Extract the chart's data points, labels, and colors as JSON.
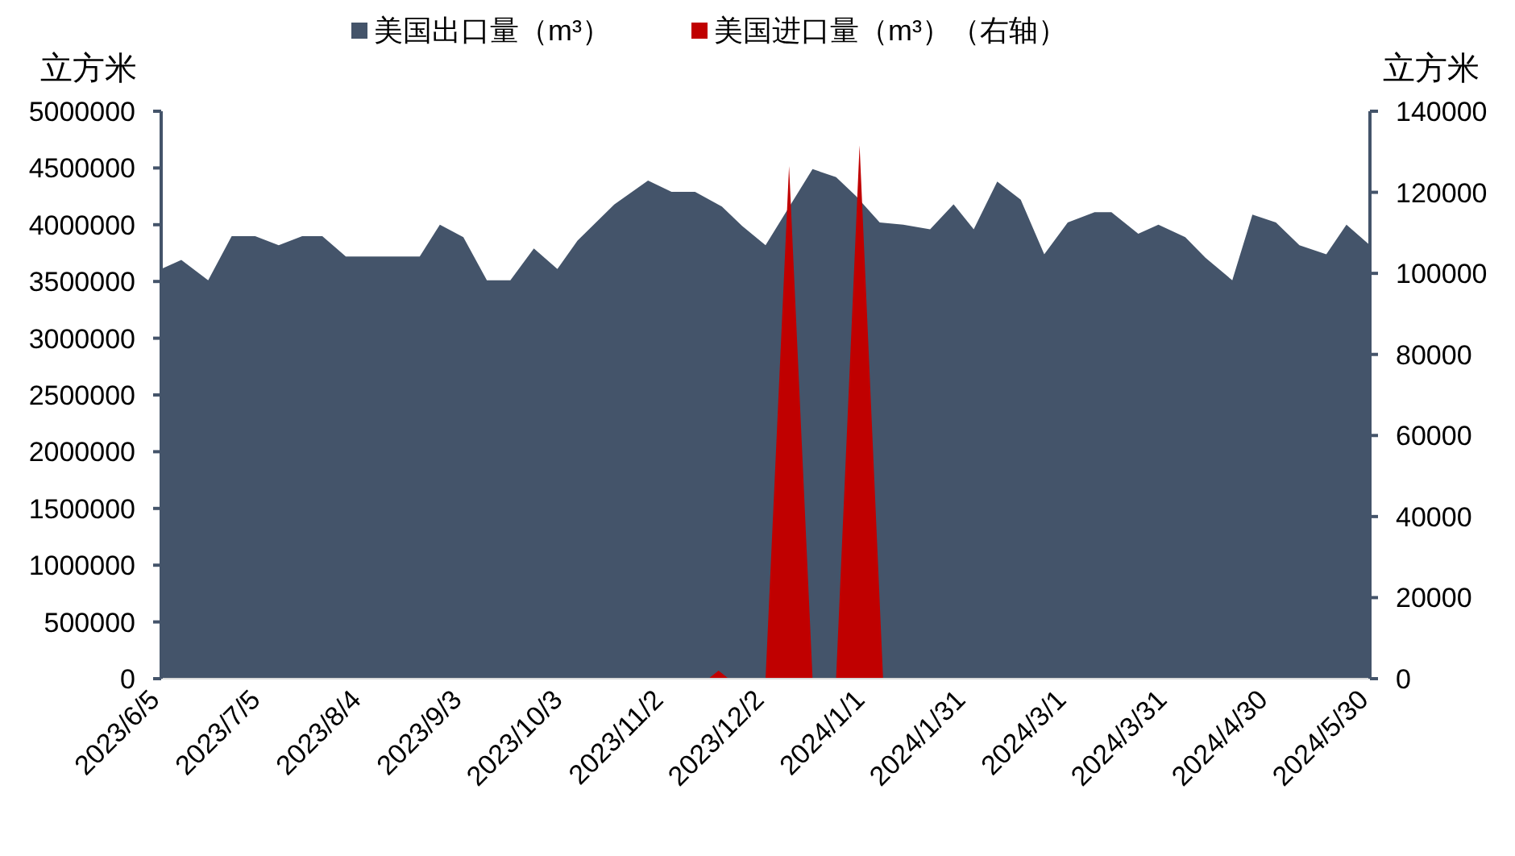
{
  "chart_data": {
    "type": "area",
    "ylabel": "立方米",
    "y2label": "立方米",
    "legend": "top",
    "xlim": [
      "2023-06-05",
      "2024-05-30"
    ],
    "xticks": [
      {
        "value": "2023-06-05",
        "label": "2023/6/5"
      },
      {
        "value": "2023-07-05",
        "label": "2023/7/5"
      },
      {
        "value": "2023-08-04",
        "label": "2023/8/4"
      },
      {
        "value": "2023-09-03",
        "label": "2023/9/3"
      },
      {
        "value": "2023-10-03",
        "label": "2023/10/3"
      },
      {
        "value": "2023-11-02",
        "label": "2023/11/2"
      },
      {
        "value": "2023-12-02",
        "label": "2023/12/2"
      },
      {
        "value": "2024-01-01",
        "label": "2024/1/1"
      },
      {
        "value": "2024-01-31",
        "label": "2024/1/31"
      },
      {
        "value": "2024-03-01",
        "label": "2024/3/1"
      },
      {
        "value": "2024-03-31",
        "label": "2024/3/31"
      },
      {
        "value": "2024-04-30",
        "label": "2024/4/30"
      },
      {
        "value": "2024-05-30",
        "label": "2024/5/30"
      }
    ],
    "ylim": [
      0,
      5000000
    ],
    "yticks": [
      0,
      500000,
      1000000,
      1500000,
      2000000,
      2500000,
      3000000,
      3500000,
      4000000,
      4500000,
      5000000
    ],
    "y2lim": [
      0,
      140000
    ],
    "y2ticks": [
      0,
      20000,
      40000,
      60000,
      80000,
      100000,
      120000,
      140000
    ],
    "series": [
      {
        "name": "美国出口量（m³）",
        "color": "#44546a",
        "x": [
          "2023-06-05",
          "2023-06-11",
          "2023-06-19",
          "2023-06-26",
          "2023-07-03",
          "2023-07-10",
          "2023-07-17",
          "2023-07-23",
          "2023-07-30",
          "2023-08-21",
          "2023-08-27",
          "2023-09-03",
          "2023-09-10",
          "2023-09-17",
          "2023-09-24",
          "2023-10-01",
          "2023-10-07",
          "2023-10-18",
          "2023-10-28",
          "2023-11-04",
          "2023-11-11",
          "2023-11-19",
          "2023-11-25",
          "2023-12-02",
          "2023-12-16",
          "2023-12-23",
          "2023-12-29",
          "2024-01-05",
          "2024-01-12",
          "2024-01-20",
          "2024-01-27",
          "2024-02-02",
          "2024-02-09",
          "2024-02-16",
          "2024-02-23",
          "2024-03-01",
          "2024-03-09",
          "2024-03-14",
          "2024-03-22",
          "2024-03-28",
          "2024-04-05",
          "2024-04-11",
          "2024-04-19",
          "2024-04-25",
          "2024-05-02",
          "2024-05-09",
          "2024-05-17",
          "2024-05-23",
          "2024-05-30"
        ],
        "values": [
          3610000,
          3690000,
          3510000,
          3900000,
          3900000,
          3820000,
          3900000,
          3900000,
          3720000,
          3720000,
          4000000,
          3890000,
          3510000,
          3510000,
          3790000,
          3610000,
          3860000,
          4180000,
          4390000,
          4290000,
          4290000,
          4160000,
          3990000,
          3820000,
          4490000,
          4420000,
          4250000,
          4020000,
          4000000,
          3960000,
          4180000,
          3960000,
          4380000,
          4220000,
          3740000,
          4020000,
          4110000,
          4110000,
          3920000,
          4000000,
          3890000,
          3710000,
          3510000,
          4090000,
          4020000,
          3820000,
          3740000,
          4000000,
          3820000
        ]
      },
      {
        "name": "美国进口量（m³）（右轴）",
        "color": "#c00000",
        "axis": "y2",
        "x": [
          "2023-06-05",
          "2023-11-15",
          "2023-11-18",
          "2023-11-21",
          "2023-12-02",
          "2023-12-09",
          "2023-12-16",
          "2023-12-23",
          "2023-12-30",
          "2024-01-06",
          "2024-05-30"
        ],
        "values": [
          0,
          0,
          2000,
          0,
          0,
          126500,
          0,
          0,
          131600,
          0,
          0
        ]
      }
    ]
  }
}
